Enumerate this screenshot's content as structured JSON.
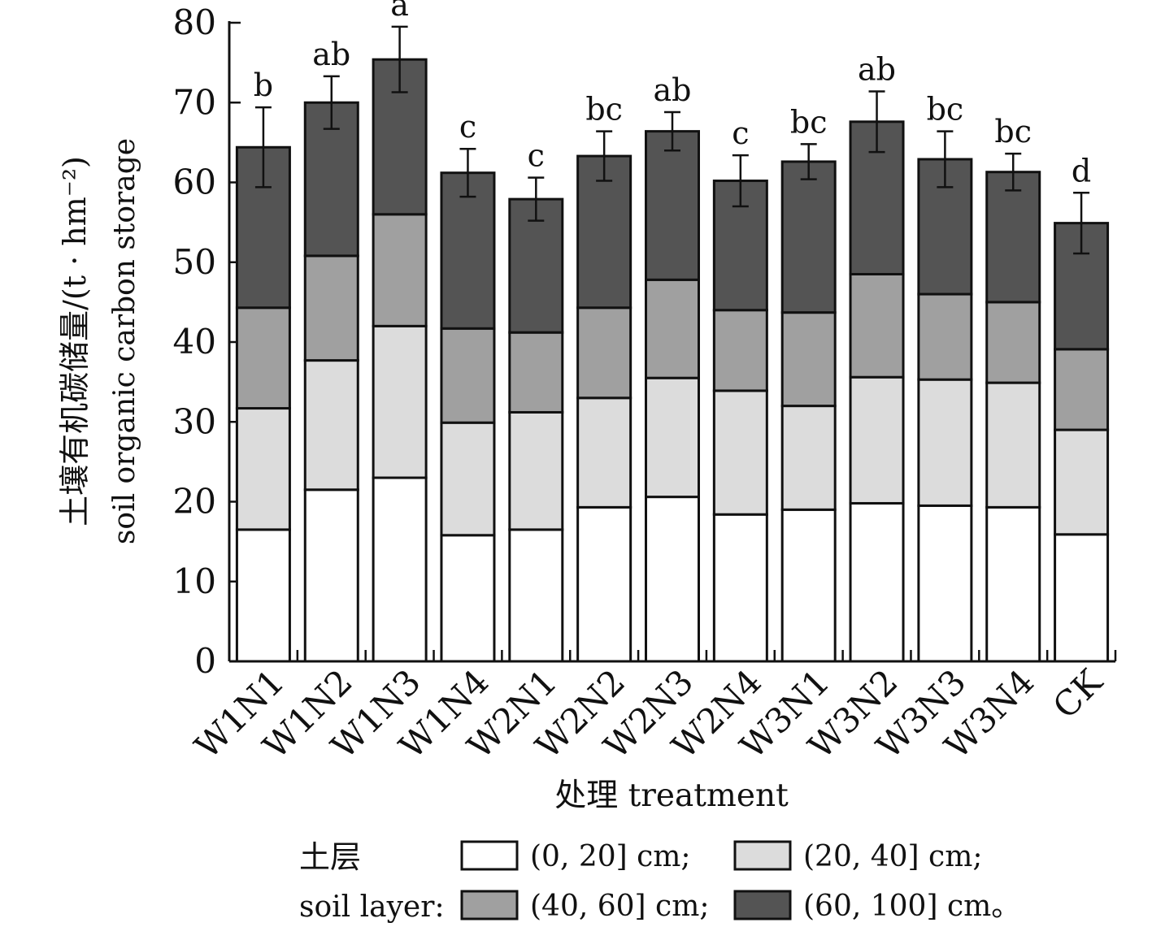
{
  "chart_data": {
    "type": "bar",
    "stacked": true,
    "ylabel_cn": "土壤有机碳储量/(t · hm⁻²)",
    "ylabel_en": "soil organic carbon storage",
    "xlabel": "处理 treatment",
    "ylim": [
      0,
      80
    ],
    "yticks": [
      "0",
      "10",
      "20",
      "30",
      "40",
      "50",
      "60",
      "70",
      "80"
    ],
    "categories": [
      "W1N1",
      "W1N2",
      "W1N3",
      "W1N4",
      "W2N1",
      "W2N2",
      "W2N3",
      "W2N4",
      "W3N1",
      "W3N2",
      "W3N3",
      "W3N4",
      "CK"
    ],
    "series": [
      {
        "name": "(0, 20] cm;",
        "color": "#ffffff",
        "values": [
          16.5,
          21.5,
          23.0,
          15.8,
          16.5,
          19.3,
          20.6,
          18.4,
          19.0,
          19.8,
          19.5,
          19.3,
          15.9
        ]
      },
      {
        "name": "(20, 40] cm;",
        "color": "#dcdcdc",
        "values": [
          15.2,
          16.2,
          19.0,
          14.1,
          14.7,
          13.7,
          14.9,
          15.5,
          13.0,
          15.8,
          15.8,
          15.6,
          13.1
        ]
      },
      {
        "name": "(40, 60] cm;",
        "color": "#a0a0a0",
        "values": [
          12.6,
          13.1,
          14.0,
          11.8,
          10.0,
          11.3,
          12.3,
          10.1,
          11.7,
          12.9,
          10.7,
          10.1,
          10.1
        ]
      },
      {
        "name": "(60, 100] cm。",
        "color": "#545454",
        "values": [
          20.1,
          19.2,
          19.4,
          19.5,
          16.7,
          19.0,
          18.6,
          16.2,
          18.9,
          19.1,
          16.9,
          16.3,
          15.8
        ]
      }
    ],
    "totals": [
      64.4,
      70.0,
      75.4,
      61.2,
      57.9,
      63.3,
      66.4,
      60.2,
      62.6,
      67.6,
      62.9,
      61.3,
      54.9
    ],
    "error": [
      5.0,
      3.3,
      4.1,
      3.0,
      2.7,
      3.1,
      2.4,
      3.2,
      2.2,
      3.8,
      3.5,
      2.3,
      3.8
    ],
    "significance": [
      "b",
      "ab",
      "a",
      "c",
      "c",
      "bc",
      "ab",
      "c",
      "bc",
      "ab",
      "bc",
      "bc",
      "d"
    ],
    "legend": {
      "title_cn": "土层",
      "title_en": "soil layer:",
      "placement": "bottom"
    }
  }
}
